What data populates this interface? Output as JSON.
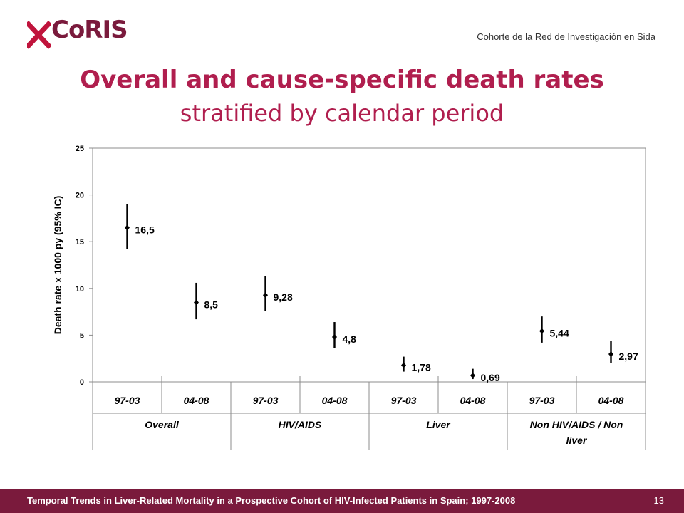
{
  "header": {
    "logo_text": "CoRIS",
    "tagline": "Cohorte de la Red de Investigación en Sida"
  },
  "slide": {
    "title": "Overall and cause-specific death rates",
    "subtitle": "stratified by calendar period"
  },
  "chart_data": {
    "type": "scatter",
    "ylabel": "Death rate x 1000 py (95% IC)",
    "ylim": [
      0,
      25
    ],
    "yticks": [
      0,
      5,
      10,
      15,
      20,
      25
    ],
    "grid": false,
    "groups": [
      "Overall",
      "HIV/AIDS",
      "Liver",
      "Non HIV/AIDS / Non liver"
    ],
    "periods": [
      "97-03",
      "04-08",
      "97-03",
      "04-08",
      "97-03",
      "04-08",
      "97-03",
      "04-08"
    ],
    "points": [
      {
        "group": "Overall",
        "period": "97-03",
        "value": 16.5,
        "lower": 14.2,
        "upper": 19.0,
        "label": "16,5"
      },
      {
        "group": "Overall",
        "period": "04-08",
        "value": 8.5,
        "lower": 6.7,
        "upper": 10.6,
        "label": "8,5"
      },
      {
        "group": "HIV/AIDS",
        "period": "97-03",
        "value": 9.28,
        "lower": 7.6,
        "upper": 11.3,
        "label": "9,28"
      },
      {
        "group": "HIV/AIDS",
        "period": "04-08",
        "value": 4.8,
        "lower": 3.6,
        "upper": 6.4,
        "label": "4,8"
      },
      {
        "group": "Liver",
        "period": "97-03",
        "value": 1.78,
        "lower": 1.1,
        "upper": 2.7,
        "label": "1,78"
      },
      {
        "group": "Liver",
        "period": "04-08",
        "value": 0.69,
        "lower": 0.3,
        "upper": 1.4,
        "label": "0,69"
      },
      {
        "group": "Non HIV/AIDS / Non liver",
        "period": "97-03",
        "value": 5.44,
        "lower": 4.2,
        "upper": 7.0,
        "label": "5,44"
      },
      {
        "group": "Non HIV/AIDS / Non liver",
        "period": "04-08",
        "value": 2.97,
        "lower": 2.0,
        "upper": 4.4,
        "label": "2,97"
      }
    ]
  },
  "footer": {
    "text": "Temporal Trends in Liver-Related Mortality in a Prospective Cohort of HIV-Infected Patients in Spain; 1997-2008",
    "page": "13"
  }
}
